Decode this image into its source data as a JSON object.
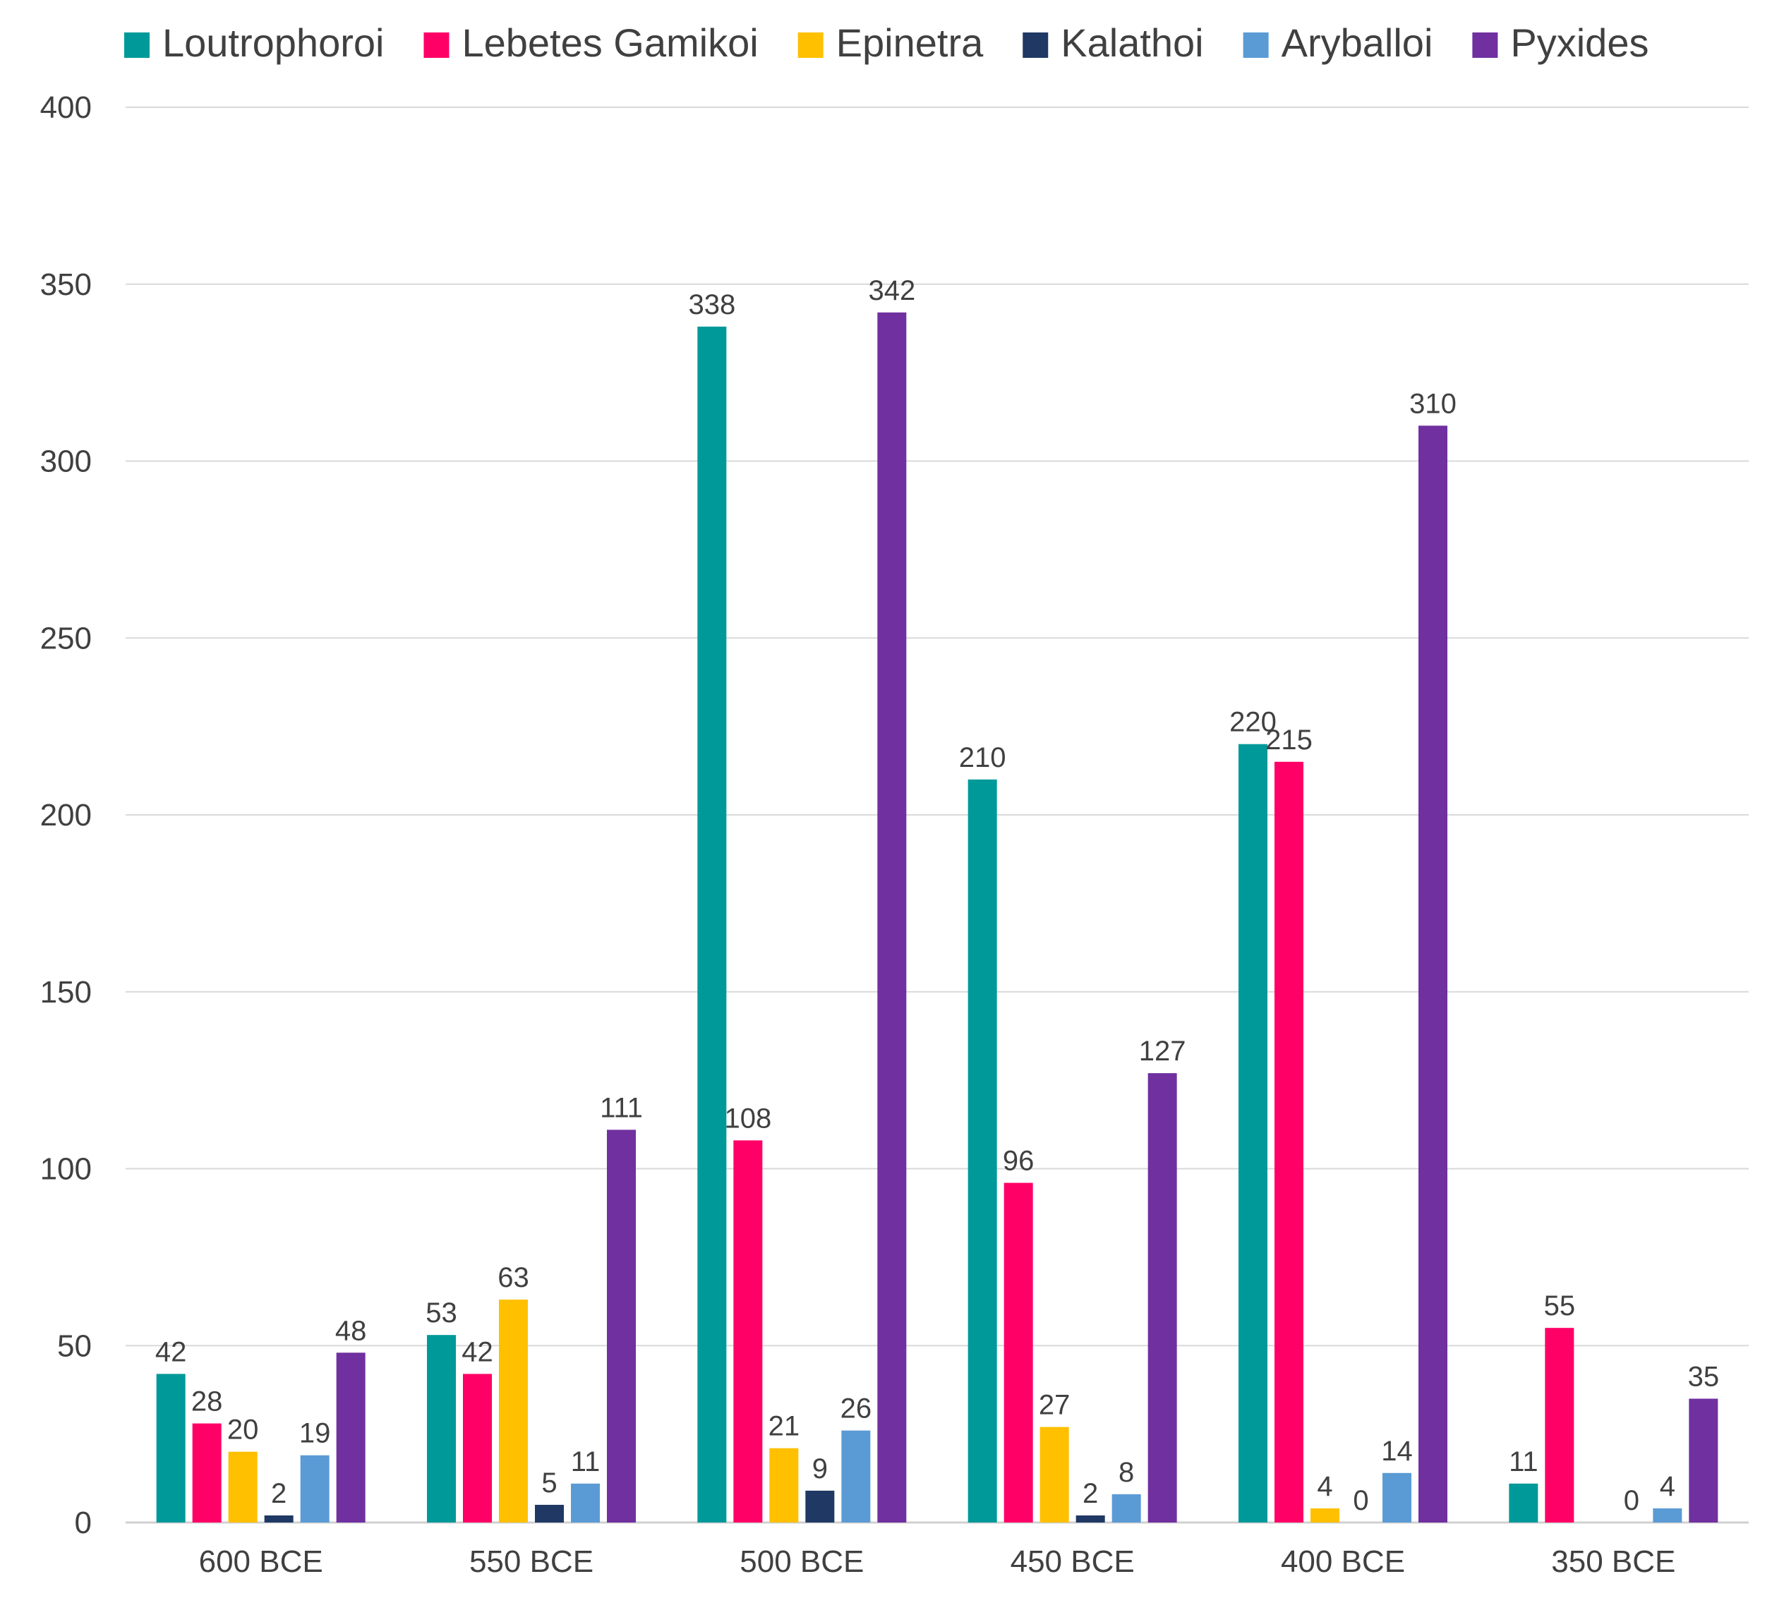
{
  "chart_data": {
    "type": "bar",
    "title": "",
    "xlabel": "",
    "ylabel": "",
    "ylim": [
      0,
      400
    ],
    "yticks": [
      0,
      50,
      100,
      150,
      200,
      250,
      300,
      350,
      400
    ],
    "grid": true,
    "legend_position": "top",
    "categories": [
      "600 BCE",
      "550 BCE",
      "500 BCE",
      "450 BCE",
      "400 BCE",
      "350 BCE"
    ],
    "series": [
      {
        "name": "Loutrophoroi",
        "color": "#009999",
        "values": [
          42,
          53,
          338,
          210,
          220,
          11
        ],
        "labels": [
          "42",
          "53",
          "338",
          "210",
          "220",
          "11"
        ]
      },
      {
        "name": "Lebetes Gamikoi",
        "color": "#FF0066",
        "values": [
          28,
          42,
          108,
          96,
          215,
          55
        ],
        "labels": [
          "28",
          "42",
          "108",
          "96",
          "215",
          "55"
        ]
      },
      {
        "name": "Epinetra",
        "color": "#FFC000",
        "values": [
          20,
          63,
          21,
          27,
          4,
          null
        ],
        "labels": [
          "20",
          "63",
          "21",
          "27",
          "4",
          null
        ]
      },
      {
        "name": "Kalathoi",
        "color": "#1F3864",
        "values": [
          2,
          5,
          9,
          2,
          0,
          0
        ],
        "labels": [
          "2",
          "5",
          "9",
          "2",
          "0",
          "0"
        ]
      },
      {
        "name": "Aryballoi",
        "color": "#5B9BD5",
        "values": [
          19,
          11,
          26,
          8,
          14,
          4
        ],
        "labels": [
          "19",
          "11",
          "26",
          "8",
          "14",
          "4"
        ]
      },
      {
        "name": "Pyxides",
        "color": "#7030A0",
        "values": [
          48,
          111,
          342,
          127,
          310,
          35
        ],
        "labels": [
          "48",
          "111",
          "342",
          "127",
          "310",
          "35"
        ]
      }
    ]
  }
}
